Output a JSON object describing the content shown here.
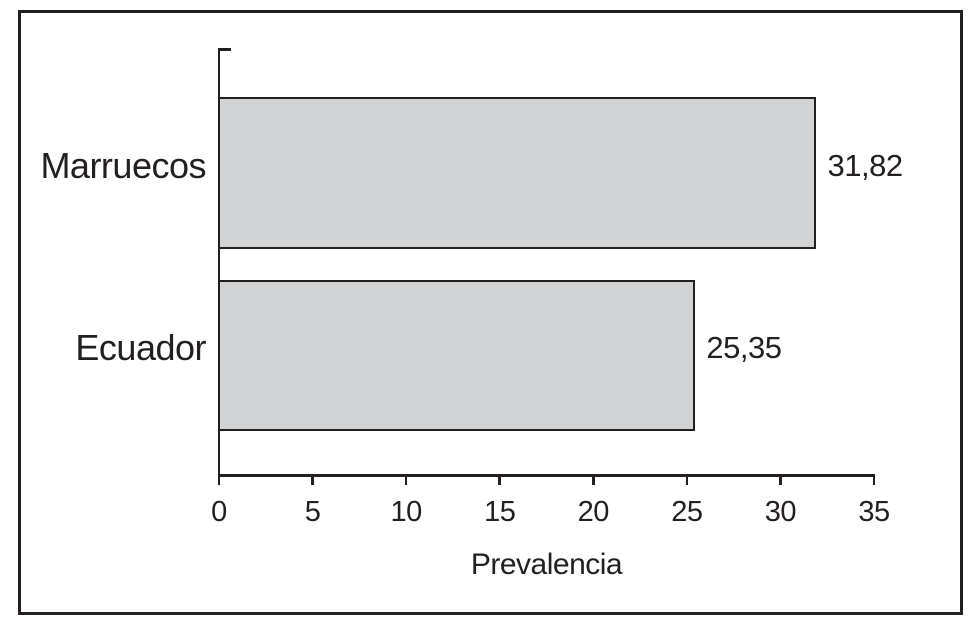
{
  "chart_data": {
    "type": "bar",
    "orientation": "horizontal",
    "title": "",
    "categories": [
      "Marruecos",
      "Ecuador"
    ],
    "values": [
      31.82,
      25.35
    ],
    "value_labels": [
      "31,82",
      "25,35"
    ],
    "xlabel": "Prevalencia",
    "xlim": [
      0,
      35
    ],
    "xticks": [
      0,
      5,
      10,
      15,
      20,
      25,
      30,
      35
    ],
    "xtick_labels": [
      "0",
      "5",
      "10",
      "15",
      "20",
      "25",
      "30",
      "35"
    ],
    "grid": false,
    "legend": false,
    "colors": {
      "bar_fill": "#d2d3d5",
      "bar_border": "#231f20",
      "axis": "#231f20",
      "text": "#231f20",
      "frame_border": "#231f20",
      "background": "#ffffff"
    }
  }
}
